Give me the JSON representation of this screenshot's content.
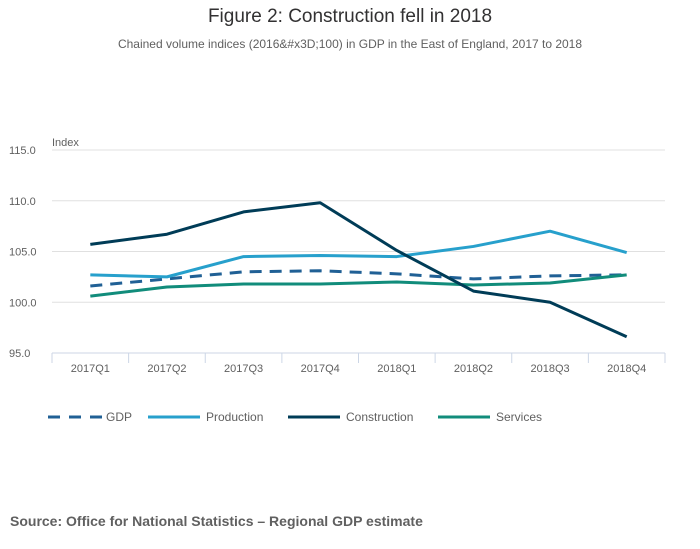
{
  "chart_data": {
    "type": "line",
    "title": "Figure 2: Construction fell in 2018",
    "subtitle": "Chained volume indices (2016&#x3D;100) in GDP in the East of England, 2017 to 2018",
    "ylabel": "Index",
    "xlabel": "",
    "ylim": [
      95,
      115
    ],
    "yticks": [
      95,
      100,
      105,
      110,
      115
    ],
    "ytick_labels": [
      "95.0",
      "100.0",
      "105.0",
      "110.0",
      "115.0"
    ],
    "grid": true,
    "legend_position": "bottom",
    "categories": [
      "2017Q1",
      "2017Q2",
      "2017Q3",
      "2017Q4",
      "2018Q1",
      "2018Q2",
      "2018Q3",
      "2018Q4"
    ],
    "series": [
      {
        "name": "GDP",
        "color": "#206095",
        "dashed": true,
        "values": [
          101.6,
          102.3,
          103.0,
          103.1,
          102.8,
          102.3,
          102.6,
          102.7
        ]
      },
      {
        "name": "Production",
        "color": "#27a0cc",
        "dashed": false,
        "values": [
          102.7,
          102.5,
          104.5,
          104.6,
          104.5,
          105.5,
          107.0,
          104.9
        ]
      },
      {
        "name": "Construction",
        "color": "#003c57",
        "dashed": false,
        "values": [
          105.7,
          106.7,
          108.9,
          109.8,
          105.1,
          101.1,
          100.0,
          96.6
        ]
      },
      {
        "name": "Services",
        "color": "#118c7b",
        "dashed": false,
        "values": [
          100.6,
          101.5,
          101.8,
          101.8,
          102.0,
          101.7,
          101.9,
          102.7
        ]
      }
    ],
    "source": "Source: Office for National Statistics – Regional GDP estimate"
  }
}
